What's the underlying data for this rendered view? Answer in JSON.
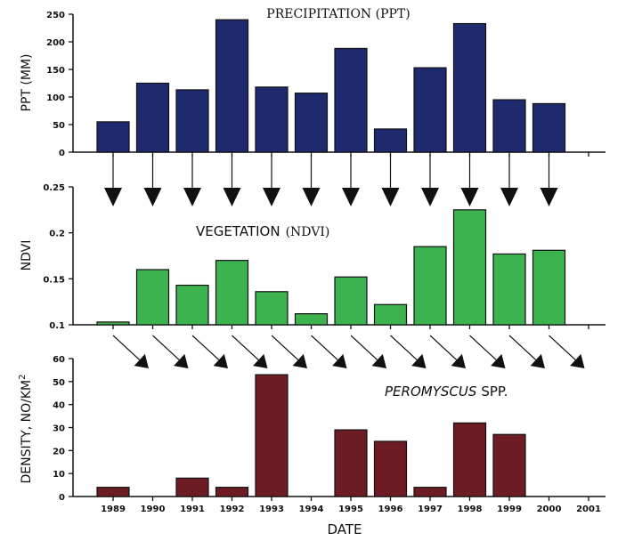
{
  "chart_data": [
    {
      "type": "bar",
      "title_serif": "PRECIPITATION (PPT)",
      "ylabel": "PPT (MM)",
      "categories": [
        "1989",
        "1990",
        "1991",
        "1992",
        "1993",
        "1994",
        "1995",
        "1996",
        "1997",
        "1998",
        "1999",
        "2000",
        "2001"
      ],
      "values": [
        55,
        125,
        113,
        240,
        118,
        107,
        188,
        42,
        153,
        233,
        95,
        88,
        null
      ],
      "ylim": [
        0,
        250
      ],
      "yticks": [
        "0",
        "50",
        "100",
        "150",
        "200",
        "250"
      ],
      "color": "#1e2a6e"
    },
    {
      "type": "bar",
      "title_sans": "VEGETATION",
      "title_serif": "(NDVI)",
      "ylabel": "NDVI",
      "categories": [
        "1989",
        "1990",
        "1991",
        "1992",
        "1993",
        "1994",
        "1995",
        "1996",
        "1997",
        "1998",
        "1999",
        "2000",
        "2001"
      ],
      "values": [
        0.103,
        0.16,
        0.143,
        0.17,
        0.136,
        0.112,
        0.152,
        0.122,
        0.185,
        0.225,
        0.177,
        0.181,
        null
      ],
      "ylim": [
        0.1,
        0.25
      ],
      "yticks": [
        "0.1",
        "0.15",
        "0.2",
        "0.25"
      ],
      "color": "#3db34f"
    },
    {
      "type": "bar",
      "title_italic": "PEROMYSCUS",
      "title_rest": "SPP.",
      "ylabel": "DENSITY, NO/KM",
      "ylabel_sup": "2",
      "xlabel": "DATE",
      "categories": [
        "1989",
        "1990",
        "1991",
        "1992",
        "1993",
        "1994",
        "1995",
        "1996",
        "1997",
        "1998",
        "1999",
        "2000",
        "2001"
      ],
      "values": [
        4,
        null,
        8,
        4,
        53,
        null,
        29,
        24,
        4,
        32,
        27,
        null,
        null
      ],
      "ylim": [
        0,
        60
      ],
      "yticks": [
        "0",
        "10",
        "20",
        "30",
        "40",
        "50",
        "60"
      ],
      "color": "#6e1c24"
    }
  ]
}
